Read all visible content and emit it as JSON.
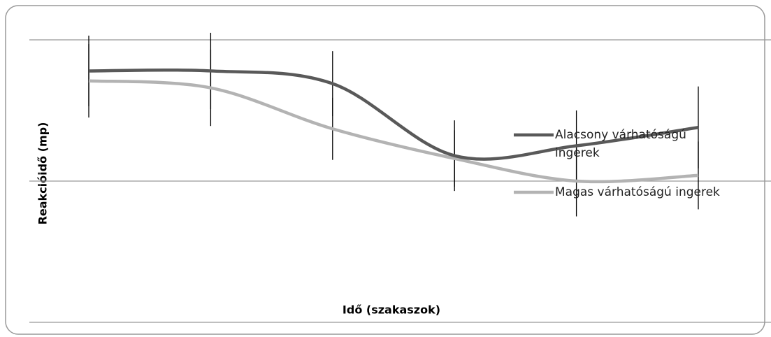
{
  "chart_data": {
    "type": "line",
    "categories": [
      null,
      null,
      null,
      null,
      null,
      null
    ],
    "series": [
      {
        "name": "Alacsony várhatóságú ingerek",
        "color": "#595959",
        "values": [
          1.78,
          1.78,
          1.69,
          1.18,
          1.25,
          1.38
        ],
        "errors": [
          0.25,
          0.27,
          0.23,
          0.25,
          0.25,
          0.29
        ]
      },
      {
        "name": "Magas várhatóságú ingerek",
        "color": "#b3b3b3",
        "values": [
          1.71,
          1.66,
          1.37,
          1.16,
          1.0,
          1.04
        ],
        "errors": [
          0.26,
          0.27,
          0.22,
          0.2,
          0.25,
          0.24
        ]
      }
    ],
    "ylim": [
      0,
      2
    ],
    "yticks": [
      0,
      1,
      2
    ],
    "grid": true,
    "x_label": "Idő (szakaszok)",
    "y_label": "Reakcióidő (mp)",
    "legend": "right"
  }
}
